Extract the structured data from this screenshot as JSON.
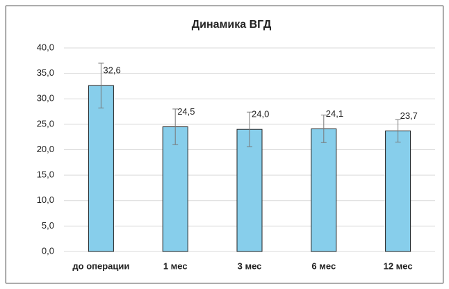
{
  "chart_data": {
    "type": "bar",
    "title": "Динамика ВГД",
    "categories": [
      "до операции",
      "1 мес",
      "3 мес",
      "6 мес",
      "12 мес"
    ],
    "values": [
      32.6,
      24.5,
      24.0,
      24.1,
      23.7
    ],
    "value_labels": [
      "32,6",
      "24,5",
      "24,0",
      "24,1",
      "23,7"
    ],
    "errors": [
      4.4,
      3.5,
      3.4,
      2.7,
      2.2
    ],
    "color": "#87ceeb",
    "ylim": [
      0,
      40
    ],
    "yticks": [
      {
        "value": 0,
        "label": "0,0"
      },
      {
        "value": 5,
        "label": "5,0"
      },
      {
        "value": 10,
        "label": "10,0"
      },
      {
        "value": 15,
        "label": "15,0"
      },
      {
        "value": 20,
        "label": "20,0"
      },
      {
        "value": 25,
        "label": "25,0"
      },
      {
        "value": 30,
        "label": "30,0"
      },
      {
        "value": 35,
        "label": "35,0"
      },
      {
        "value": 40,
        "label": "40,0"
      }
    ],
    "grid": true
  }
}
